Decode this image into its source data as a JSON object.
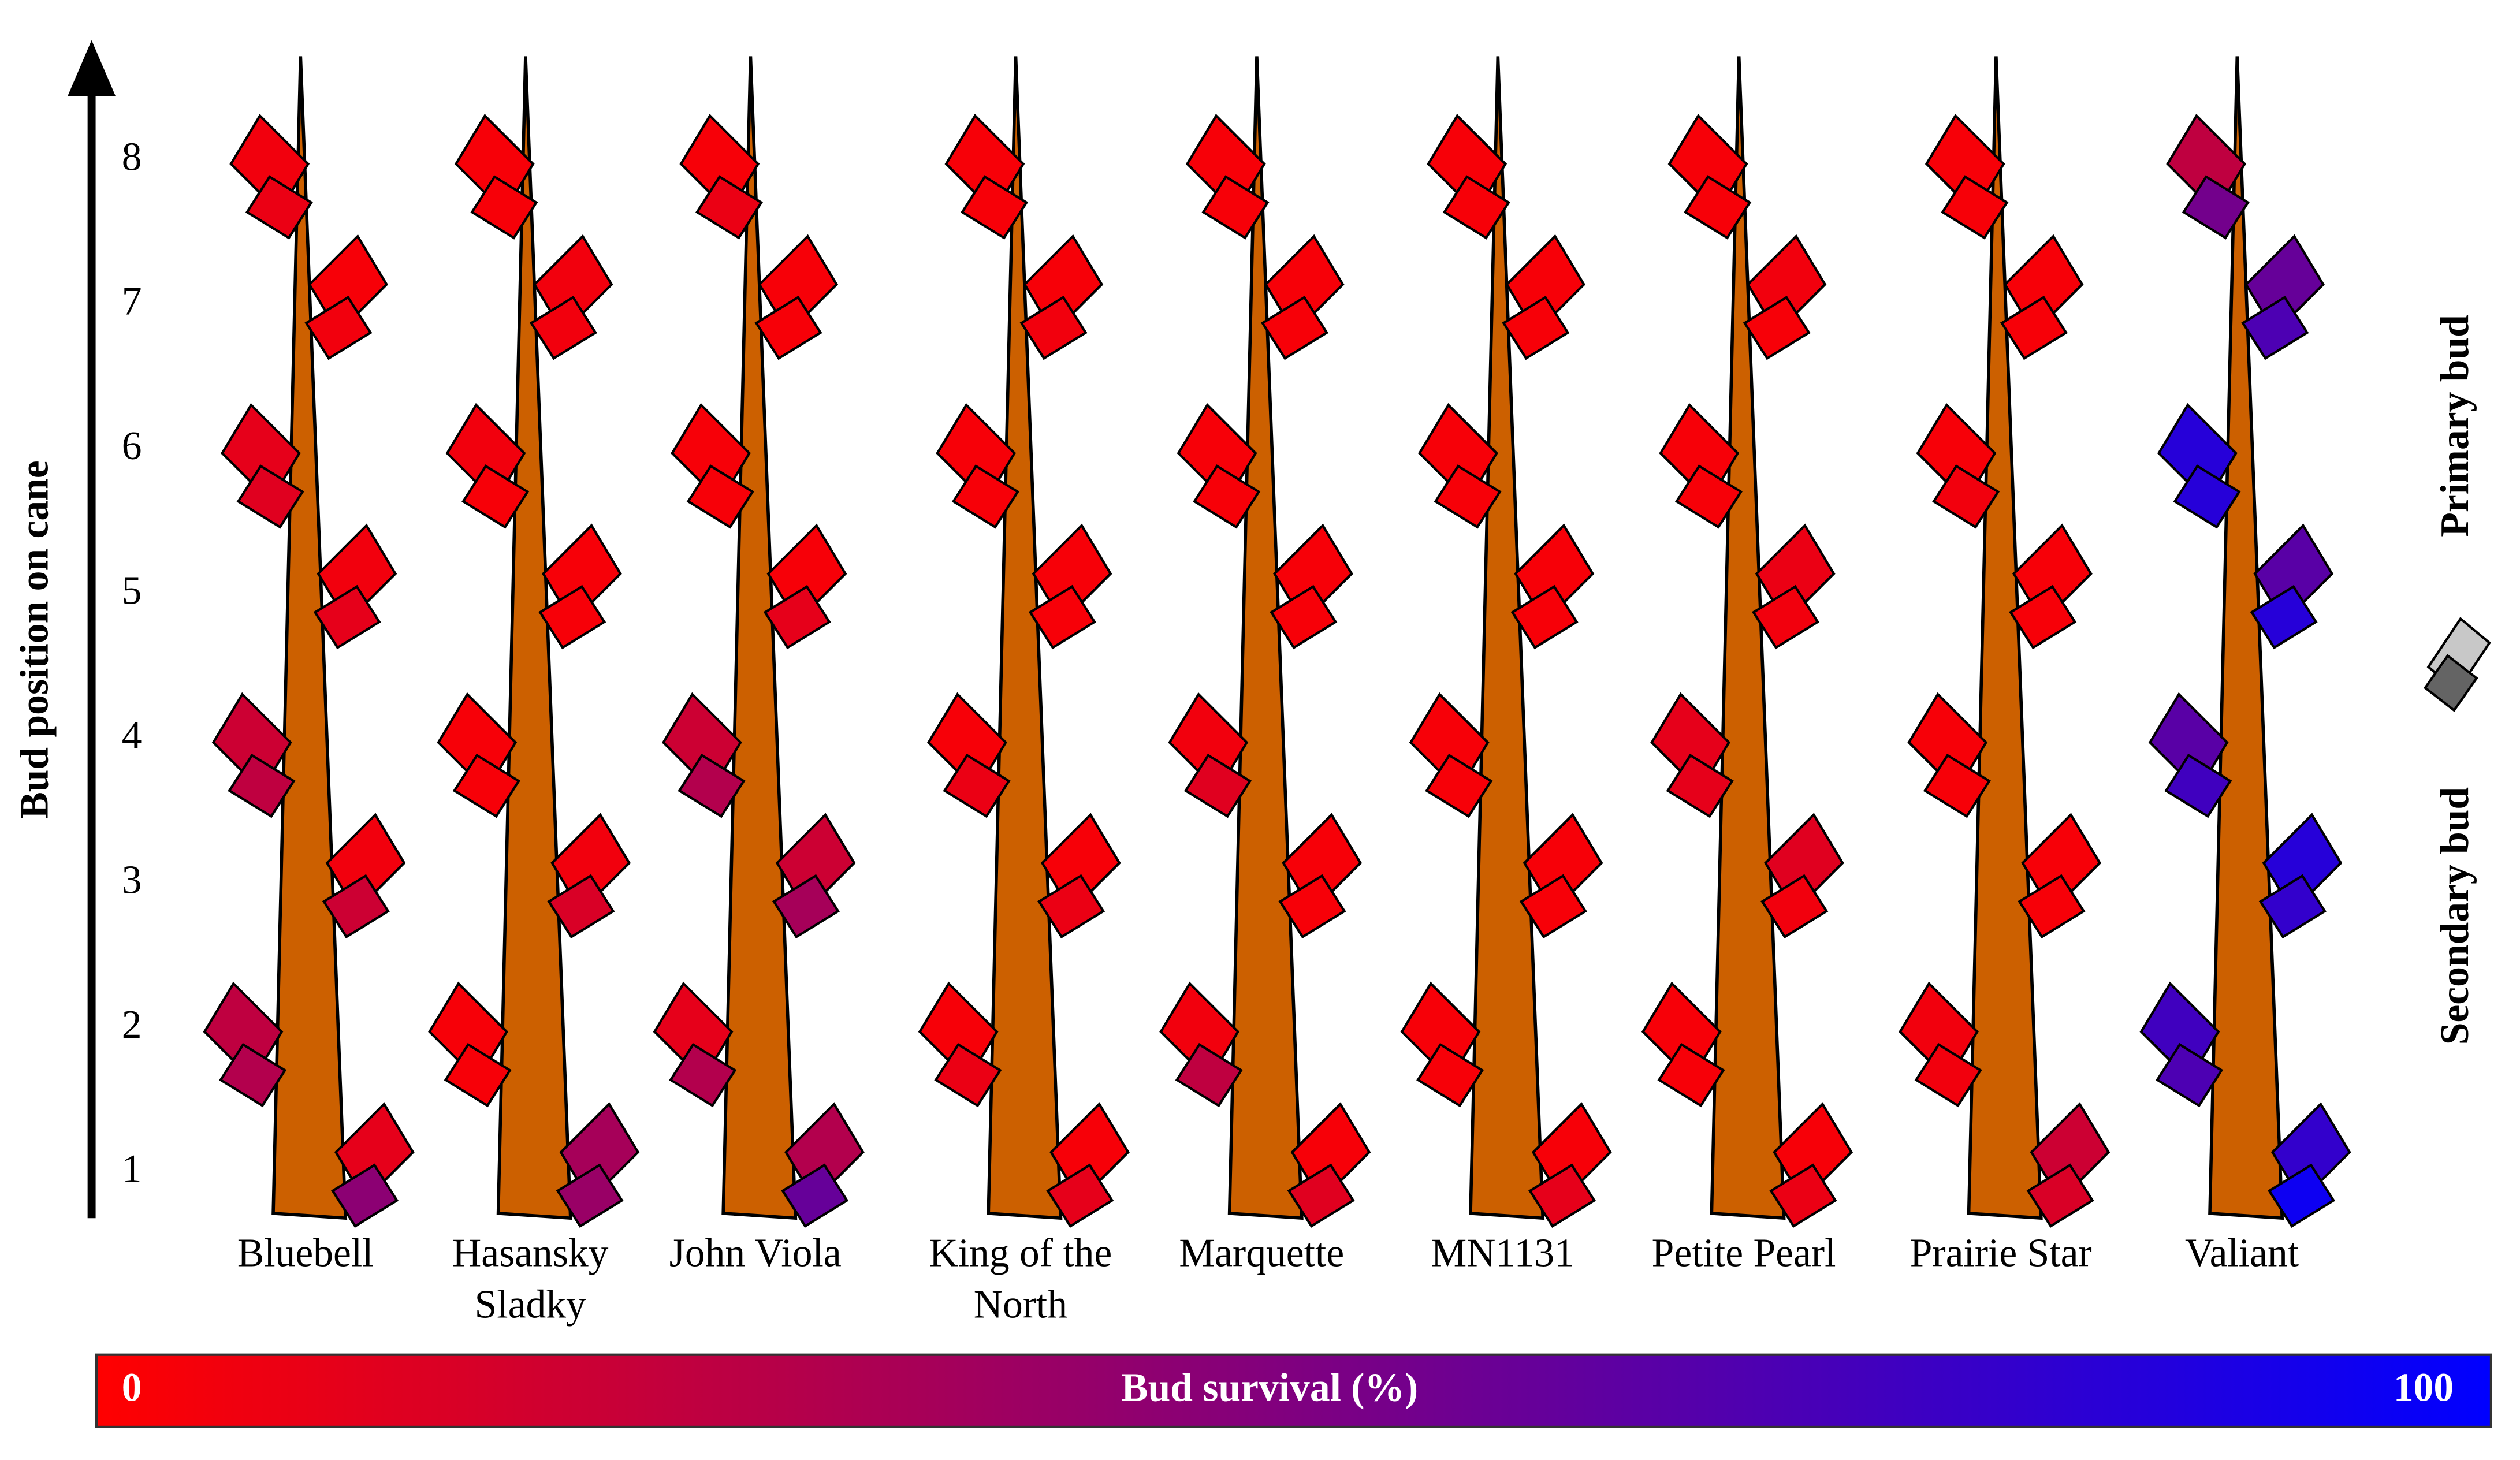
{
  "chart_data": {
    "type": "bud-map",
    "y_label": "Bud position on cane",
    "positions": [
      1,
      2,
      3,
      4,
      5,
      6,
      7,
      8
    ],
    "categories": [
      "Bluebell",
      "Hasansky Sladky",
      "John Viola",
      "King of the North",
      "Marquette",
      "MN1131",
      "Petite Pearl",
      "Prairie Star",
      "Valiant"
    ],
    "series": [
      {
        "name": "Primary bud",
        "color": "#c8c8c8",
        "values": [
          [
            10,
            25,
            5,
            20,
            5,
            10,
            3,
            5
          ],
          [
            35,
            3,
            5,
            3,
            3,
            5,
            5,
            3
          ],
          [
            30,
            10,
            20,
            20,
            3,
            3,
            3,
            3
          ],
          [
            3,
            3,
            3,
            3,
            3,
            3,
            3,
            3
          ],
          [
            3,
            5,
            3,
            5,
            3,
            3,
            3,
            3
          ],
          [
            3,
            3,
            3,
            3,
            3,
            3,
            3,
            3
          ],
          [
            3,
            3,
            12,
            10,
            8,
            3,
            5,
            3
          ],
          [
            20,
            5,
            3,
            3,
            3,
            3,
            3,
            3
          ],
          [
            80,
            75,
            85,
            65,
            65,
            85,
            60,
            25
          ]
        ]
      },
      {
        "name": "Secondary bud",
        "color": "#646464",
        "values": [
          [
            45,
            30,
            20,
            25,
            10,
            12,
            5,
            8
          ],
          [
            40,
            3,
            15,
            3,
            3,
            3,
            5,
            3
          ],
          [
            60,
            30,
            35,
            30,
            10,
            3,
            3,
            8
          ],
          [
            10,
            8,
            8,
            8,
            3,
            3,
            5,
            3
          ],
          [
            12,
            25,
            3,
            12,
            3,
            3,
            3,
            3
          ],
          [
            10,
            3,
            3,
            3,
            3,
            3,
            3,
            3
          ],
          [
            8,
            3,
            5,
            10,
            5,
            3,
            3,
            3
          ],
          [
            15,
            5,
            3,
            3,
            3,
            5,
            3,
            3
          ],
          [
            95,
            70,
            80,
            75,
            85,
            85,
            70,
            55
          ]
        ]
      }
    ],
    "cane_color": "#cc6000",
    "colorbar": {
      "label": "Bud survival (%)",
      "min": 0,
      "max": 100,
      "colors": [
        "#ff0000",
        "#0000ff"
      ]
    }
  }
}
